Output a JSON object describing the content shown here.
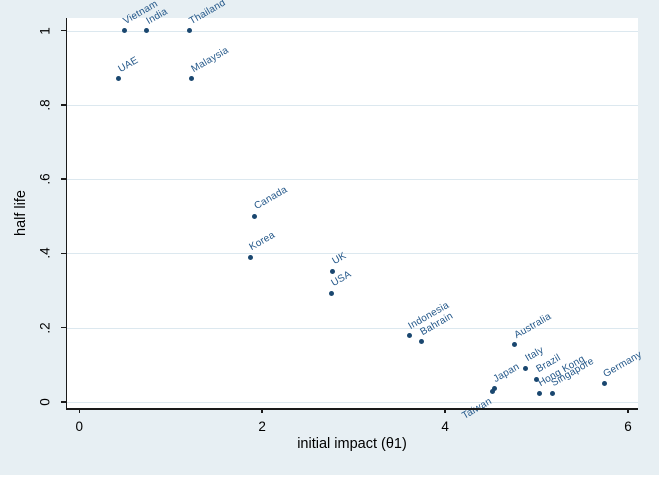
{
  "colors": {
    "figure_background": "#e7eff3",
    "plot_background": "#ffffff",
    "gridline": "#dce8ef",
    "axis": "#1a1a1a",
    "marker": "#1a476f",
    "marker_label": "#235789"
  },
  "chart_data": {
    "type": "scatter",
    "title": "",
    "xlabel": "initial impact (θ1)",
    "ylabel": "half life",
    "xlim": [
      0,
      6
    ],
    "ylim": [
      0,
      1
    ],
    "grid": "horizontal-only",
    "legend": "none",
    "marker": "filled-circle",
    "marker_label_angle_deg": 30,
    "x_ticks": {
      "values": [
        0,
        2,
        4,
        6
      ],
      "labels": [
        "0",
        "2",
        "4",
        "6"
      ]
    },
    "y_ticks": {
      "values": [
        0,
        0.2,
        0.4,
        0.6,
        0.8,
        1
      ],
      "labels": [
        "0",
        ".2",
        ".4",
        ".6",
        ".8",
        "1"
      ]
    },
    "points": [
      {
        "label": "Vietnam",
        "x": 0.49,
        "y": 1.0,
        "label_pos": "ne"
      },
      {
        "label": "India",
        "x": 0.74,
        "y": 1.0,
        "label_pos": "ne"
      },
      {
        "label": "Thailand",
        "x": 1.21,
        "y": 1.0,
        "label_pos": "ne"
      },
      {
        "label": "UAE",
        "x": 0.43,
        "y": 0.87,
        "label_pos": "ne"
      },
      {
        "label": "Malaysia",
        "x": 1.23,
        "y": 0.87,
        "label_pos": "ne"
      },
      {
        "label": "Canada",
        "x": 1.92,
        "y": 0.5,
        "label_pos": "ne"
      },
      {
        "label": "Korea",
        "x": 1.87,
        "y": 0.39,
        "label_pos": "ne"
      },
      {
        "label": "UK",
        "x": 2.77,
        "y": 0.352,
        "label_pos": "ne"
      },
      {
        "label": "USA",
        "x": 2.76,
        "y": 0.293,
        "label_pos": "ne"
      },
      {
        "label": "Indonesia",
        "x": 3.61,
        "y": 0.178,
        "label_pos": "ne"
      },
      {
        "label": "Bahrain",
        "x": 3.74,
        "y": 0.162,
        "label_pos": "ne"
      },
      {
        "label": "Australia",
        "x": 4.76,
        "y": 0.154,
        "label_pos": "ne"
      },
      {
        "label": "Italy",
        "x": 4.88,
        "y": 0.091,
        "label_pos": "ne"
      },
      {
        "label": "Japan",
        "x": 4.54,
        "y": 0.036,
        "label_pos": "ne"
      },
      {
        "label": "Taiwan",
        "x": 4.52,
        "y": 0.027,
        "label_pos": "sw"
      },
      {
        "label": "Brazil",
        "x": 5.0,
        "y": 0.061,
        "label_pos": "ne"
      },
      {
        "label": "Hong Kong",
        "x": 5.03,
        "y": 0.023,
        "label_pos": "ne"
      },
      {
        "label": "Singapore",
        "x": 5.17,
        "y": 0.023,
        "label_pos": "ne"
      },
      {
        "label": "Germany",
        "x": 5.74,
        "y": 0.049,
        "label_pos": "ne"
      }
    ]
  }
}
